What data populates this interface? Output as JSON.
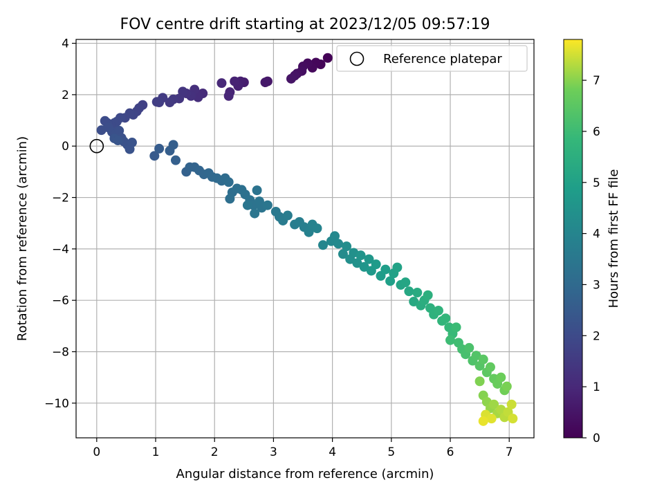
{
  "chart_data": {
    "type": "scatter",
    "title": "FOV centre drift starting at 2023/12/05 09:57:19",
    "xlabel": "Angular distance from reference (arcmin)",
    "ylabel": "Rotation from reference (arcmin)",
    "xlim": [
      -0.35,
      7.42
    ],
    "ylim": [
      -11.35,
      4.15
    ],
    "xticks": [
      0,
      1,
      2,
      3,
      4,
      5,
      6,
      7
    ],
    "yticks": [
      4,
      2,
      0,
      -2,
      -4,
      -6,
      -8,
      -10
    ],
    "xtick_labels": [
      "0",
      "1",
      "2",
      "3",
      "4",
      "5",
      "6",
      "7"
    ],
    "ytick_labels": [
      "4",
      "2",
      "0",
      "−2",
      "−4",
      "−6",
      "−8",
      "−10"
    ],
    "grid": true,
    "legend": {
      "placement": "top-right",
      "entries": [
        "Reference platepar"
      ]
    },
    "colorbar": {
      "label": "Hours from first FF file",
      "range": [
        0,
        7.8
      ],
      "ticks": [
        0,
        1,
        2,
        3,
        4,
        5,
        6,
        7
      ],
      "tick_labels": [
        "0",
        "1",
        "2",
        "3",
        "4",
        "5",
        "6",
        "7"
      ],
      "colormap": "viridis"
    },
    "reference_point": {
      "x": 0,
      "y": 0
    },
    "series": [
      {
        "points": [
          [
            3.92,
            3.43
          ],
          [
            3.8,
            3.18
          ],
          [
            3.72,
            3.25
          ],
          [
            3.66,
            3.05
          ],
          [
            3.58,
            3.22
          ],
          [
            3.5,
            3.1
          ],
          [
            3.48,
            2.92
          ],
          [
            3.4,
            2.82
          ],
          [
            3.36,
            2.74
          ],
          [
            3.3,
            2.62
          ],
          [
            2.9,
            2.52
          ],
          [
            2.86,
            2.48
          ],
          [
            2.5,
            2.48
          ],
          [
            2.44,
            2.52
          ],
          [
            2.4,
            2.34
          ],
          [
            2.34,
            2.52
          ],
          [
            2.26,
            2.1
          ],
          [
            2.24,
            1.95
          ],
          [
            2.12,
            2.45
          ],
          [
            1.8,
            2.05
          ],
          [
            1.72,
            1.9
          ],
          [
            1.66,
            2.2
          ],
          [
            1.6,
            1.95
          ],
          [
            1.52,
            2.05
          ],
          [
            1.46,
            2.12
          ],
          [
            1.4,
            1.85
          ],
          [
            1.3,
            1.82
          ],
          [
            1.24,
            1.7
          ],
          [
            1.12,
            1.88
          ],
          [
            1.06,
            1.7
          ],
          [
            1.02,
            1.72
          ],
          [
            0.78,
            1.6
          ],
          [
            0.72,
            1.48
          ],
          [
            0.68,
            1.35
          ],
          [
            0.62,
            1.22
          ],
          [
            0.56,
            1.28
          ],
          [
            0.48,
            1.1
          ],
          [
            0.4,
            1.1
          ],
          [
            0.34,
            0.95
          ],
          [
            0.3,
            0.9
          ],
          [
            0.24,
            0.78
          ],
          [
            0.18,
            0.9
          ],
          [
            0.14,
            0.98
          ],
          [
            0.08,
            0.62
          ],
          [
            0.2,
            0.72
          ],
          [
            0.26,
            0.55
          ],
          [
            0.32,
            0.45
          ],
          [
            0.38,
            0.6
          ],
          [
            0.42,
            0.32
          ],
          [
            0.46,
            0.18
          ],
          [
            0.52,
            0.05
          ],
          [
            0.56,
            -0.12
          ],
          [
            0.6,
            0.14
          ],
          [
            0.3,
            0.3
          ],
          [
            0.36,
            0.22
          ],
          [
            0.98,
            -0.38
          ],
          [
            1.06,
            -0.1
          ],
          [
            1.24,
            -0.18
          ],
          [
            1.3,
            0.05
          ],
          [
            1.34,
            -0.55
          ],
          [
            1.52,
            -1.0
          ],
          [
            1.58,
            -0.82
          ],
          [
            1.66,
            -0.82
          ],
          [
            1.74,
            -0.95
          ],
          [
            1.82,
            -1.1
          ],
          [
            1.9,
            -1.05
          ],
          [
            1.96,
            -1.2
          ],
          [
            2.04,
            -1.25
          ],
          [
            2.12,
            -1.35
          ],
          [
            2.18,
            -1.25
          ],
          [
            2.24,
            -1.4
          ],
          [
            2.3,
            -1.8
          ],
          [
            2.26,
            -2.05
          ],
          [
            2.38,
            -1.65
          ],
          [
            2.46,
            -1.7
          ],
          [
            2.52,
            -1.88
          ],
          [
            2.6,
            -2.1
          ],
          [
            2.66,
            -2.3
          ],
          [
            2.72,
            -1.72
          ],
          [
            2.76,
            -2.15
          ],
          [
            2.8,
            -2.4
          ],
          [
            2.68,
            -2.62
          ],
          [
            2.56,
            -2.3
          ],
          [
            2.9,
            -2.3
          ],
          [
            3.04,
            -2.55
          ],
          [
            3.1,
            -2.75
          ],
          [
            3.16,
            -2.9
          ],
          [
            3.24,
            -2.7
          ],
          [
            3.36,
            -3.05
          ],
          [
            3.44,
            -2.95
          ],
          [
            3.52,
            -3.15
          ],
          [
            3.6,
            -3.35
          ],
          [
            3.66,
            -3.05
          ],
          [
            3.74,
            -3.2
          ],
          [
            3.84,
            -3.85
          ],
          [
            3.98,
            -3.7
          ],
          [
            4.04,
            -3.5
          ],
          [
            4.1,
            -3.8
          ],
          [
            4.18,
            -4.2
          ],
          [
            4.24,
            -3.9
          ],
          [
            4.3,
            -4.4
          ],
          [
            4.36,
            -4.15
          ],
          [
            4.42,
            -4.55
          ],
          [
            4.48,
            -4.25
          ],
          [
            4.54,
            -4.7
          ],
          [
            4.62,
            -4.4
          ],
          [
            4.66,
            -4.85
          ],
          [
            4.74,
            -4.6
          ],
          [
            4.82,
            -5.05
          ],
          [
            4.9,
            -4.8
          ],
          [
            4.98,
            -5.25
          ],
          [
            5.04,
            -4.95
          ],
          [
            5.1,
            -4.72
          ],
          [
            5.16,
            -5.4
          ],
          [
            5.24,
            -5.3
          ],
          [
            5.3,
            -5.65
          ],
          [
            5.38,
            -6.05
          ],
          [
            5.44,
            -5.7
          ],
          [
            5.5,
            -6.2
          ],
          [
            5.56,
            -6.0
          ],
          [
            5.62,
            -5.8
          ],
          [
            5.66,
            -6.3
          ],
          [
            5.72,
            -6.55
          ],
          [
            5.8,
            -6.4
          ],
          [
            5.86,
            -6.8
          ],
          [
            5.92,
            -6.7
          ],
          [
            5.98,
            -7.05
          ],
          [
            6.04,
            -7.3
          ],
          [
            6.1,
            -7.05
          ],
          [
            6.0,
            -7.55
          ],
          [
            6.14,
            -7.65
          ],
          [
            6.2,
            -7.9
          ],
          [
            6.26,
            -8.1
          ],
          [
            6.32,
            -7.85
          ],
          [
            6.38,
            -8.35
          ],
          [
            6.44,
            -8.15
          ],
          [
            6.5,
            -8.55
          ],
          [
            6.56,
            -8.3
          ],
          [
            6.62,
            -8.8
          ],
          [
            6.68,
            -8.6
          ],
          [
            6.74,
            -9.05
          ],
          [
            6.8,
            -9.25
          ],
          [
            6.86,
            -9.0
          ],
          [
            6.92,
            -9.5
          ],
          [
            6.96,
            -9.35
          ],
          [
            6.5,
            -9.15
          ],
          [
            6.56,
            -9.7
          ],
          [
            6.62,
            -9.95
          ],
          [
            6.68,
            -10.2
          ],
          [
            6.74,
            -10.05
          ],
          [
            6.8,
            -10.4
          ],
          [
            6.86,
            -10.25
          ],
          [
            6.92,
            -10.55
          ],
          [
            6.98,
            -10.35
          ],
          [
            7.04,
            -10.05
          ],
          [
            7.06,
            -10.6
          ],
          [
            6.6,
            -10.45
          ],
          [
            6.7,
            -10.6
          ],
          [
            6.56,
            -10.7
          ]
        ],
        "hours": [
          0.05,
          0.1,
          0.15,
          0.2,
          0.25,
          0.3,
          0.35,
          0.4,
          0.45,
          0.5,
          0.55,
          0.6,
          0.7,
          0.75,
          0.8,
          0.85,
          0.9,
          0.95,
          1.0,
          1.1,
          1.15,
          1.2,
          1.25,
          1.3,
          1.35,
          1.4,
          1.45,
          1.5,
          1.55,
          1.6,
          1.62,
          1.7,
          1.74,
          1.78,
          1.82,
          1.86,
          1.9,
          1.94,
          1.98,
          2.0,
          2.02,
          2.04,
          2.06,
          2.1,
          2.12,
          2.14,
          2.16,
          2.18,
          2.2,
          2.22,
          2.24,
          2.26,
          2.28,
          2.3,
          2.32,
          2.5,
          2.55,
          2.6,
          2.62,
          2.66,
          2.72,
          2.76,
          2.8,
          2.84,
          2.88,
          2.92,
          2.96,
          3.0,
          3.04,
          3.08,
          3.12,
          3.16,
          3.18,
          3.2,
          3.24,
          3.28,
          3.3,
          3.32,
          3.34,
          3.36,
          3.38,
          3.4,
          3.42,
          3.46,
          3.52,
          3.58,
          3.62,
          3.66,
          3.72,
          3.76,
          3.8,
          3.86,
          3.9,
          3.94,
          4.0,
          4.06,
          4.1,
          4.16,
          4.22,
          4.28,
          4.34,
          4.4,
          4.46,
          4.52,
          4.58,
          4.64,
          4.7,
          4.76,
          4.82,
          4.88,
          4.94,
          5.0,
          5.04,
          5.1,
          5.16,
          5.22,
          5.28,
          5.34,
          5.4,
          5.46,
          5.52,
          5.56,
          5.6,
          5.66,
          5.72,
          5.78,
          5.84,
          5.9,
          5.96,
          6.0,
          6.06,
          6.12,
          6.18,
          6.24,
          6.3,
          6.36,
          6.42,
          6.48,
          6.54,
          6.6,
          6.66,
          6.72,
          6.78,
          6.84,
          6.9,
          6.94,
          6.98,
          7.04,
          7.1,
          7.16,
          7.22,
          7.28,
          7.34,
          7.4,
          7.46,
          7.52,
          7.56,
          7.6,
          7.66
        ]
      }
    ]
  }
}
